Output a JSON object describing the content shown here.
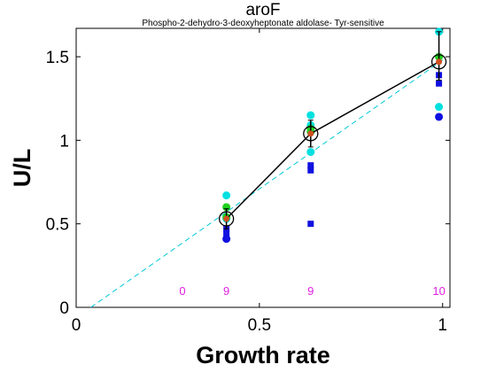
{
  "chart_data": {
    "type": "scatter",
    "title": "aroF",
    "subtitle": "Phospho-2-dehydro-3-deoxyheptonate aldolase- Tyr-sensitive",
    "xlabel": "Growth rate",
    "ylabel": "U/L",
    "xlim": [
      0,
      1.02
    ],
    "ylim": [
      0,
      1.67
    ],
    "x_ticks": [
      0,
      0.5,
      1
    ],
    "x_tick_labels": [
      "0",
      "0.5",
      "1"
    ],
    "y_ticks": [
      0,
      0.5,
      1,
      1.5
    ],
    "y_tick_labels": [
      "0",
      "0.5",
      "1",
      "1.5"
    ],
    "grid": false,
    "colors": {
      "mean_line": "#000000",
      "fit_line": "#00c8d8",
      "cyan": "#00e0e0",
      "green": "#20d020",
      "blue": "#1010e0",
      "mean_fill": "#d05020",
      "count_text": "#e020e0"
    },
    "fit_line": {
      "x": [
        0.04,
        1.0
      ],
      "y": [
        0.0,
        1.48
      ],
      "style": "dashed"
    },
    "mean_series": {
      "x": [
        0.41,
        0.64,
        0.99
      ],
      "y": [
        0.53,
        1.04,
        1.47
      ],
      "err_low": [
        0.47,
        0.96,
        1.36
      ],
      "err_high": [
        0.59,
        1.12,
        1.65
      ]
    },
    "cyan_points": [
      {
        "x": 0.41,
        "y": 0.67
      },
      {
        "x": 0.41,
        "y": 0.53
      },
      {
        "x": 0.64,
        "y": 1.15
      },
      {
        "x": 0.64,
        "y": 1.09
      },
      {
        "x": 0.64,
        "y": 0.93
      },
      {
        "x": 0.99,
        "y": 1.65
      },
      {
        "x": 0.99,
        "y": 1.2
      }
    ],
    "green_points": [
      {
        "x": 0.41,
        "y": 0.6
      },
      {
        "x": 0.41,
        "y": 0.54
      },
      {
        "x": 0.64,
        "y": 1.07
      },
      {
        "x": 0.64,
        "y": 1.05
      },
      {
        "x": 0.99,
        "y": 1.5
      }
    ],
    "blue_circles": [
      {
        "x": 0.41,
        "y": 0.41
      },
      {
        "x": 0.99,
        "y": 1.14
      }
    ],
    "blue_squares": [
      {
        "x": 0.41,
        "y": 0.47
      },
      {
        "x": 0.41,
        "y": 0.44
      },
      {
        "x": 0.64,
        "y": 0.85
      },
      {
        "x": 0.64,
        "y": 0.82
      },
      {
        "x": 0.64,
        "y": 0.5
      },
      {
        "x": 0.99,
        "y": 1.39
      },
      {
        "x": 0.99,
        "y": 1.34
      }
    ],
    "count_labels": [
      {
        "x": 0.29,
        "text": "0"
      },
      {
        "x": 0.41,
        "text": "9"
      },
      {
        "x": 0.64,
        "text": "9"
      },
      {
        "x": 0.99,
        "text": "10"
      }
    ],
    "count_labels_y": 0.1
  }
}
